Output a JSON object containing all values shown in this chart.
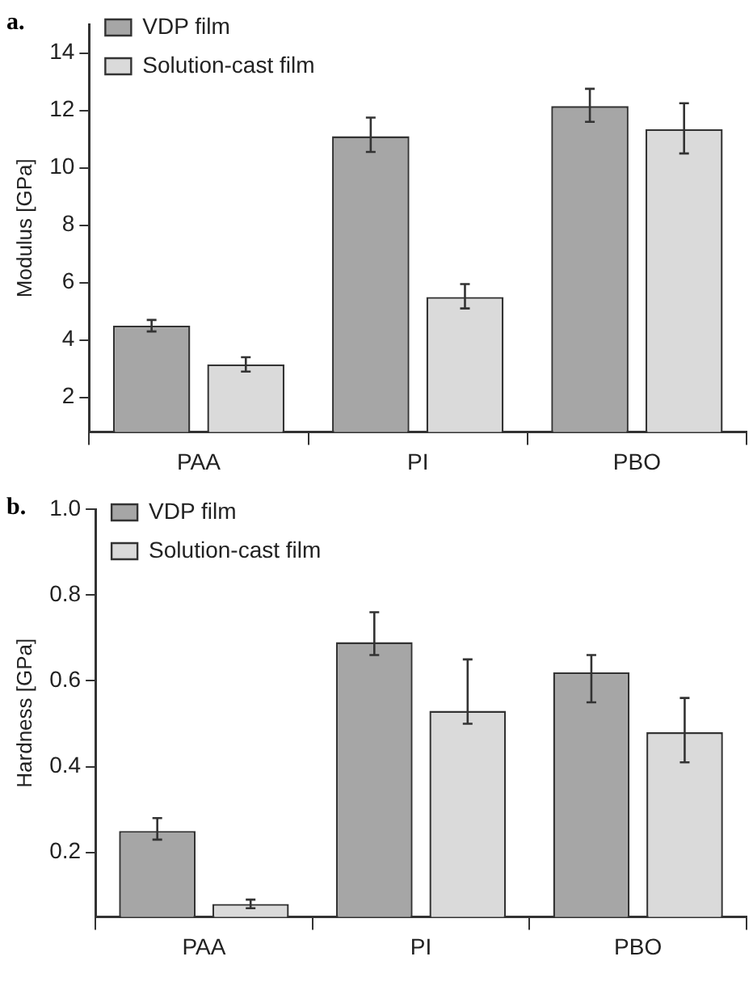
{
  "chart_data": [
    {
      "type": "bar",
      "title": "a.",
      "ylabel": "Modulus [GPa]",
      "categories": [
        "PAA",
        "PI",
        "PBO"
      ],
      "series": [
        {
          "name": "VDP film",
          "color": "#a6a6a6",
          "values": [
            4.5,
            11.1,
            12.15
          ],
          "errors": [
            [
              4.3,
              4.7
            ],
            [
              10.55,
              11.75
            ],
            [
              11.6,
              12.75
            ]
          ]
        },
        {
          "name": "Solution-cast film",
          "color": "#dadada",
          "values": [
            3.15,
            5.5,
            11.35
          ],
          "errors": [
            [
              2.9,
              3.4
            ],
            [
              5.1,
              5.95
            ],
            [
              10.5,
              12.25
            ]
          ]
        }
      ],
      "ylim": [
        0.8,
        15
      ],
      "yticks": [
        2,
        4,
        6,
        8,
        10,
        12,
        14
      ],
      "grid": false,
      "legend": "top left"
    },
    {
      "type": "bar",
      "title": "b.",
      "ylabel": "Hardness [GPa]",
      "categories": [
        "PAA",
        "PI",
        "PBO"
      ],
      "series": [
        {
          "name": "VDP film",
          "color": "#a6a6a6",
          "values": [
            0.25,
            0.69,
            0.62
          ],
          "errors": [
            [
              0.23,
              0.28
            ],
            [
              0.66,
              0.76
            ],
            [
              0.55,
              0.66
            ]
          ]
        },
        {
          "name": "Solution-cast film",
          "color": "#dadada",
          "values": [
            0.08,
            0.53,
            0.48
          ],
          "errors": [
            [
              0.07,
              0.09
            ],
            [
              0.5,
              0.65
            ],
            [
              0.41,
              0.56
            ]
          ]
        }
      ],
      "ylim": [
        0.05,
        1.0
      ],
      "yticks": [
        {
          "value": 0.2,
          "label": "0.2"
        },
        {
          "value": 0.4,
          "label": "0.4"
        },
        {
          "value": 0.6,
          "label": "0.6"
        },
        {
          "value": 0.8,
          "label": "0.8"
        },
        {
          "value": 1.0,
          "label": "1.0"
        }
      ],
      "grid": false,
      "legend": "top left"
    }
  ]
}
